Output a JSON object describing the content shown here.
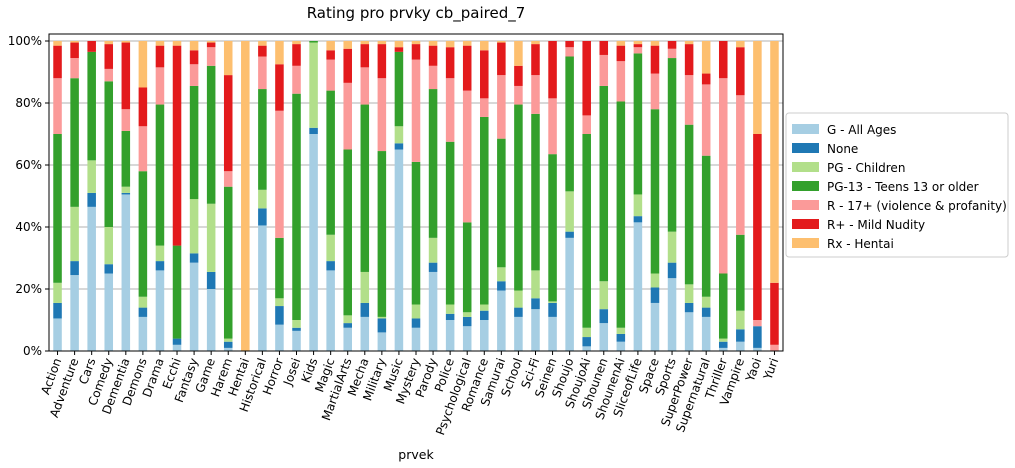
{
  "chart_data": {
    "type": "bar",
    "stacked": true,
    "normalized": true,
    "title": "Rating pro prvky cb_paired_7",
    "xlabel": "prvek",
    "ylabel": "",
    "ylim": [
      0,
      100
    ],
    "y_ticks": [
      "0%",
      "20%",
      "40%",
      "60%",
      "80%",
      "100%"
    ],
    "grid": "horizontal",
    "legend_position": "right",
    "categories": [
      "Action",
      "Adventure",
      "Cars",
      "Comedy",
      "Dementia",
      "Demons",
      "Drama",
      "Ecchi",
      "Fantasy",
      "Game",
      "Harem",
      "Hentai",
      "Historical",
      "Horror",
      "Josei",
      "Kids",
      "Magic",
      "MartialArts",
      "Mecha",
      "Military",
      "Music",
      "Mystery",
      "Parody",
      "Police",
      "Psychological",
      "Romance",
      "Samurai",
      "School",
      "Sci-Fi",
      "Seinen",
      "Shoujo",
      "ShoujoAi",
      "Shounen",
      "ShounenAi",
      "SliceofLife",
      "Space",
      "Sports",
      "SuperPower",
      "Supernatural",
      "Thriller",
      "Vampire",
      "Yaoi",
      "Yuri"
    ],
    "series": [
      {
        "name": "G - All Ages",
        "color": "#a6cee3",
        "values": [
          10.5,
          24.5,
          46.5,
          25,
          50.5,
          11,
          26,
          2,
          28.5,
          20,
          1,
          0,
          40.5,
          8.5,
          6.5,
          70,
          26,
          7.5,
          11,
          6,
          65,
          7.5,
          25.5,
          10,
          8,
          10,
          19.5,
          11,
          13.5,
          11,
          36.5,
          1.5,
          9,
          3,
          41.5,
          15.5,
          23.5,
          12.5,
          11,
          1,
          3,
          1,
          0
        ]
      },
      {
        "name": "None",
        "color": "#1f78b4",
        "values": [
          5,
          4.5,
          4.5,
          3,
          0.5,
          3,
          3,
          2,
          3,
          5.5,
          2,
          0,
          5.5,
          6,
          1,
          2,
          3,
          1.5,
          4.5,
          4.5,
          2,
          3,
          3,
          2,
          3,
          3,
          3,
          3,
          3.5,
          4.5,
          2,
          3,
          4.5,
          2.5,
          2,
          5,
          5,
          3,
          3,
          2,
          4,
          7,
          0
        ]
      },
      {
        "name": "PG - Children",
        "color": "#b2df8a",
        "values": [
          6.5,
          17.5,
          10.5,
          12,
          2,
          3.5,
          5,
          0,
          17.5,
          22,
          1,
          0,
          6,
          2.5,
          2.5,
          27.5,
          8.5,
          2.5,
          10,
          0.5,
          5.5,
          4.5,
          8,
          3,
          1.5,
          2,
          4.5,
          5.5,
          9,
          0.5,
          13,
          3,
          9,
          2,
          7,
          4.5,
          10,
          6,
          3.5,
          1,
          6,
          0,
          0
        ]
      },
      {
        "name": "PG-13 - Teens 13 or older",
        "color": "#33a02c",
        "values": [
          48,
          41.5,
          35,
          47,
          18,
          40.5,
          45.5,
          30,
          36.5,
          44.5,
          49,
          0,
          32.5,
          19.5,
          73,
          0.5,
          46.5,
          53.5,
          54,
          53.5,
          24,
          46,
          48,
          52.5,
          29,
          60.5,
          41.5,
          60,
          50.5,
          47.5,
          43.5,
          62.5,
          63,
          73,
          45.5,
          53,
          56,
          51.5,
          45.5,
          21,
          24.5,
          0,
          0
        ]
      },
      {
        "name": "R - 17+ (violence & profanity)",
        "color": "#fb9a99",
        "values": [
          18,
          6.5,
          0,
          4,
          7,
          14.5,
          12,
          0,
          7,
          6,
          5,
          0,
          10.5,
          41,
          9,
          0,
          10,
          21.5,
          12,
          23.5,
          0,
          33,
          7.5,
          20.5,
          42.5,
          6,
          20.5,
          6,
          12.5,
          18,
          3,
          6,
          10,
          13,
          2,
          11.5,
          3,
          16,
          23,
          63,
          45,
          2,
          2
        ]
      },
      {
        "name": "R+ - Mild Nudity",
        "color": "#e31a1c",
        "values": [
          10.5,
          5,
          3.5,
          8,
          21.5,
          12.5,
          7,
          64.5,
          4.5,
          1.5,
          31,
          0,
          3.5,
          15,
          7,
          0,
          3,
          11,
          7.5,
          11,
          1.5,
          5,
          6.5,
          10,
          14.5,
          15.5,
          10.5,
          6.5,
          10,
          18.5,
          2,
          24,
          4.5,
          5,
          1,
          9,
          2.5,
          10,
          3.5,
          12,
          15.5,
          60,
          20
        ]
      },
      {
        "name": "Rx - Hentai",
        "color": "#fdbf6f",
        "values": [
          1.5,
          0.5,
          0,
          1,
          0.5,
          15,
          1.5,
          1.5,
          3,
          0.5,
          11,
          100,
          1.5,
          7.5,
          1,
          0,
          3,
          2.5,
          1,
          1,
          2,
          1,
          1.5,
          2,
          1.5,
          3,
          0.5,
          8,
          1,
          0,
          0,
          0,
          0,
          1.5,
          1,
          1.5,
          0,
          1,
          10.5,
          0,
          2,
          30,
          78
        ]
      }
    ]
  }
}
